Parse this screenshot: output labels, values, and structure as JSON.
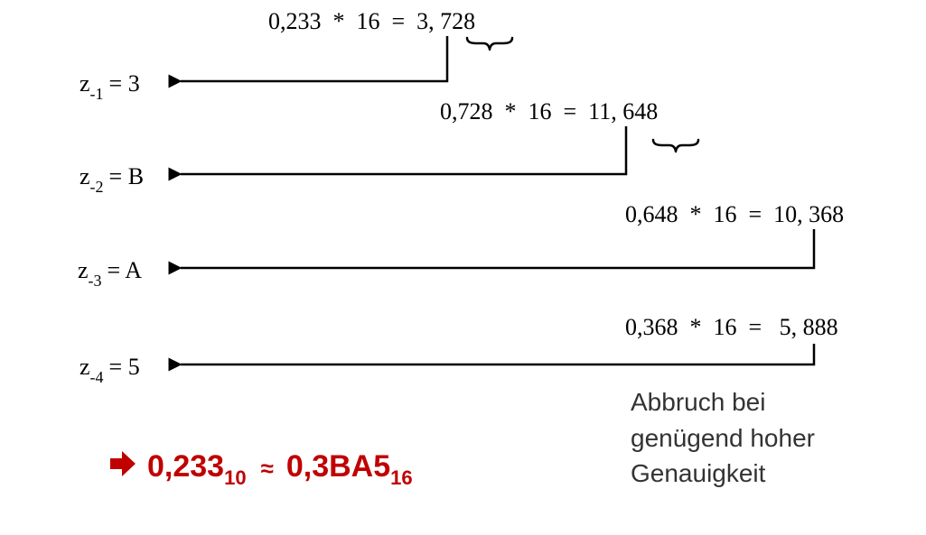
{
  "colors": {
    "text": "#000000",
    "note": "#333333",
    "result": "#c00000"
  },
  "steps": [
    {
      "calc": "0,233  *  16  =  3, 728",
      "digit_label": "z",
      "digit_index": "-1",
      "digit_value": "= 3"
    },
    {
      "calc": "0,728  *  16  =  11, 648",
      "digit_label": "z",
      "digit_index": "-2",
      "digit_value": "= B"
    },
    {
      "calc": "0,648  *  16  =  10, 368",
      "digit_label": "z",
      "digit_index": "-3",
      "digit_value": "= A"
    },
    {
      "calc": "0,368  *  16  =   5, 888",
      "digit_label": "z",
      "digit_index": "-4",
      "digit_value": "= 5"
    }
  ],
  "note": {
    "line1": "Abbruch bei",
    "line2": "genügend hoher",
    "line3": "Genauigkeit"
  },
  "result": {
    "arrow_icon": "right-arrow-icon",
    "lhs": "0,233",
    "lhs_base": "10",
    "approx": "≈",
    "rhs": "0,3BA5",
    "rhs_base": "16"
  }
}
